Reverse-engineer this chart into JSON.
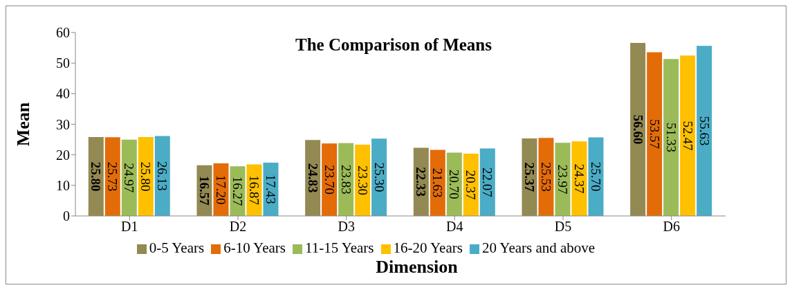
{
  "chart_data": {
    "type": "bar",
    "title": "The Comparison of Means",
    "xlabel": "Dimension",
    "ylabel": "Mean",
    "categories": [
      "D1",
      "D2",
      "D3",
      "D4",
      "D5",
      "D6"
    ],
    "series": [
      {
        "name": "0-5 Years",
        "color": "#938953",
        "values": [
          25.8,
          16.57,
          24.83,
          22.33,
          25.37,
          56.6
        ],
        "value_labels": [
          "25.80",
          "16.57",
          "24.83",
          "22.33",
          "25.37",
          "56.60"
        ]
      },
      {
        "name": "6-10 Years",
        "color": "#e36c09",
        "values": [
          25.73,
          17.2,
          23.7,
          21.63,
          25.53,
          53.57
        ],
        "value_labels": [
          "25.73",
          "17.20",
          "23.70",
          "21.63",
          "25.53",
          "53.57"
        ]
      },
      {
        "name": "11-15 Years",
        "color": "#9bbb59",
        "values": [
          24.97,
          16.27,
          23.83,
          20.7,
          23.97,
          51.33
        ],
        "value_labels": [
          "24.97",
          "16.27",
          "23.83",
          "20.70",
          "23.97",
          "51.33"
        ]
      },
      {
        "name": "16-20 Years",
        "color": "#ffc000",
        "values": [
          25.8,
          16.87,
          23.3,
          20.37,
          24.37,
          52.47
        ],
        "value_labels": [
          "25.80",
          "16.87",
          "23.30",
          "20.37",
          "24.37",
          "52.47"
        ]
      },
      {
        "name": "20 Years and above",
        "color": "#4bacc6",
        "values": [
          26.13,
          17.43,
          25.3,
          22.07,
          25.7,
          55.63
        ],
        "value_labels": [
          "26.13",
          "17.43",
          "25.30",
          "22.07",
          "25.70",
          "55.63"
        ]
      }
    ],
    "ylim": [
      0,
      60
    ],
    "yticks": [
      0,
      10,
      20,
      30,
      40,
      50,
      60
    ],
    "legend": "bottom"
  }
}
